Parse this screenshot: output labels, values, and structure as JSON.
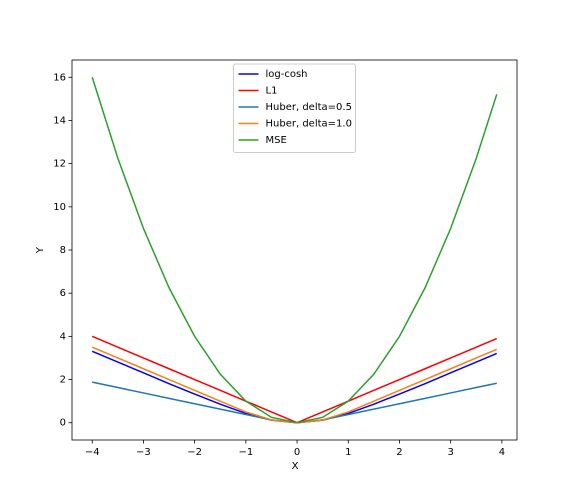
{
  "chart_data": {
    "type": "line",
    "x_label": "X",
    "y_label": "Y",
    "x": [
      -4,
      -3.5,
      -3,
      -2.5,
      -2,
      -1.5,
      -1,
      -0.5,
      0,
      0.5,
      1,
      1.5,
      2,
      2.5,
      3,
      3.5,
      3.9
    ],
    "series": [
      {
        "name": "log-cosh",
        "color": "#0000ff",
        "values": [
          3.31,
          2.81,
          2.31,
          1.81,
          1.33,
          0.86,
          0.43,
          0.12,
          0,
          0.12,
          0.43,
          0.86,
          1.33,
          1.81,
          2.31,
          2.81,
          3.21
        ]
      },
      {
        "name": "L1",
        "color": "#ff0000",
        "values": [
          4,
          3.5,
          3,
          2.5,
          2,
          1.5,
          1,
          0.5,
          0,
          0.5,
          1,
          1.5,
          2,
          2.5,
          3,
          3.5,
          3.9
        ]
      },
      {
        "name": "Huber, delta=0.5",
        "color": "#1f77b4",
        "values": [
          1.88,
          1.63,
          1.38,
          1.13,
          0.88,
          0.63,
          0.38,
          0.13,
          0,
          0.13,
          0.38,
          0.63,
          0.88,
          1.13,
          1.38,
          1.63,
          1.83
        ]
      },
      {
        "name": "Huber, delta=1.0",
        "color": "#ff7f0e",
        "values": [
          3.5,
          3,
          2.5,
          2,
          1.5,
          1,
          0.5,
          0.13,
          0,
          0.13,
          0.5,
          1,
          1.5,
          2,
          2.5,
          3,
          3.4
        ]
      },
      {
        "name": "MSE",
        "color": "#2ca02c",
        "values": [
          16,
          12.25,
          9,
          6.25,
          4,
          2.25,
          1,
          0.25,
          0,
          0.25,
          1,
          2.25,
          4,
          6.25,
          9,
          12.25,
          15.21
        ]
      }
    ],
    "xlim": [
      -4.395,
      4.295
    ],
    "ylim": [
      -0.8,
      16.8
    ],
    "xticks": [
      {
        "value": -4,
        "label": "−4"
      },
      {
        "value": -3,
        "label": "−3"
      },
      {
        "value": -2,
        "label": "−2"
      },
      {
        "value": -1,
        "label": "−1"
      },
      0,
      1,
      2,
      3,
      4
    ],
    "yticks": [
      0,
      2,
      4,
      6,
      8,
      10,
      12,
      14,
      16
    ],
    "grid": false,
    "legend": "upper center"
  }
}
